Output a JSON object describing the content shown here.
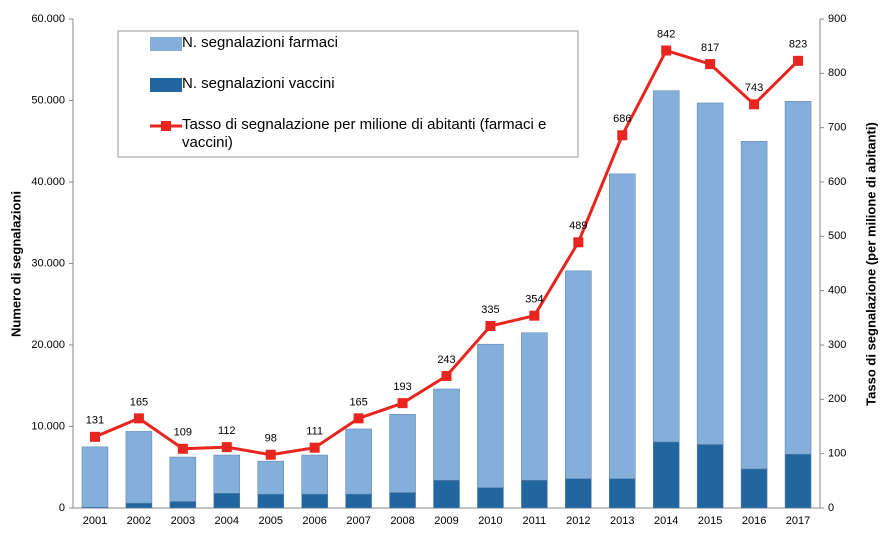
{
  "chart_data": {
    "type": "bar_line",
    "y_label": "Numero di segnalazioni",
    "y2_label": "Tasso di segnalazione (per milione di abitanti)",
    "categories": [
      "2001",
      "2002",
      "2003",
      "2004",
      "2005",
      "2006",
      "2007",
      "2008",
      "2009",
      "2010",
      "2011",
      "2012",
      "2013",
      "2014",
      "2015",
      "2016",
      "2017"
    ],
    "series": [
      {
        "name": "N. segnalazioni farmaci",
        "color": "#84afdb",
        "stacked": true,
        "values": [
          7400,
          8800,
          5450,
          4700,
          4050,
          4800,
          8000,
          9600,
          11200,
          17600,
          18100,
          25500,
          37400,
          43100,
          41900,
          40200,
          43300
        ]
      },
      {
        "name": "N. segnalazioni vaccini",
        "color": "#2266a0",
        "stacked": true,
        "values": [
          100,
          600,
          800,
          1800,
          1700,
          1700,
          1700,
          1900,
          3400,
          2500,
          3400,
          3600,
          3600,
          8100,
          7800,
          4800,
          6600
        ]
      },
      {
        "name": "Tasso di segnalazione per milione di abitanti (farmaci e vaccini)",
        "color": "#e8251f",
        "axis": "y2",
        "kind": "line",
        "values": [
          131,
          165,
          109,
          112,
          98,
          111,
          165,
          193,
          243,
          335,
          354,
          489,
          686,
          842,
          817,
          743,
          823
        ]
      }
    ],
    "ylim": [
      0,
      60000
    ],
    "yticks": [
      0,
      {
        "value": 10000,
        "label": "10.000"
      },
      {
        "value": 20000,
        "label": "20.000"
      },
      {
        "value": 30000,
        "label": "30.000"
      },
      {
        "value": 40000,
        "label": "40.000"
      },
      {
        "value": 50000,
        "label": "50.000"
      },
      {
        "value": 60000,
        "label": "60.000"
      }
    ],
    "y2lim": [
      0,
      900
    ],
    "y2ticks": [
      0,
      100,
      200,
      300,
      400,
      500,
      600,
      700,
      800,
      900
    ],
    "legend": "top-left"
  }
}
